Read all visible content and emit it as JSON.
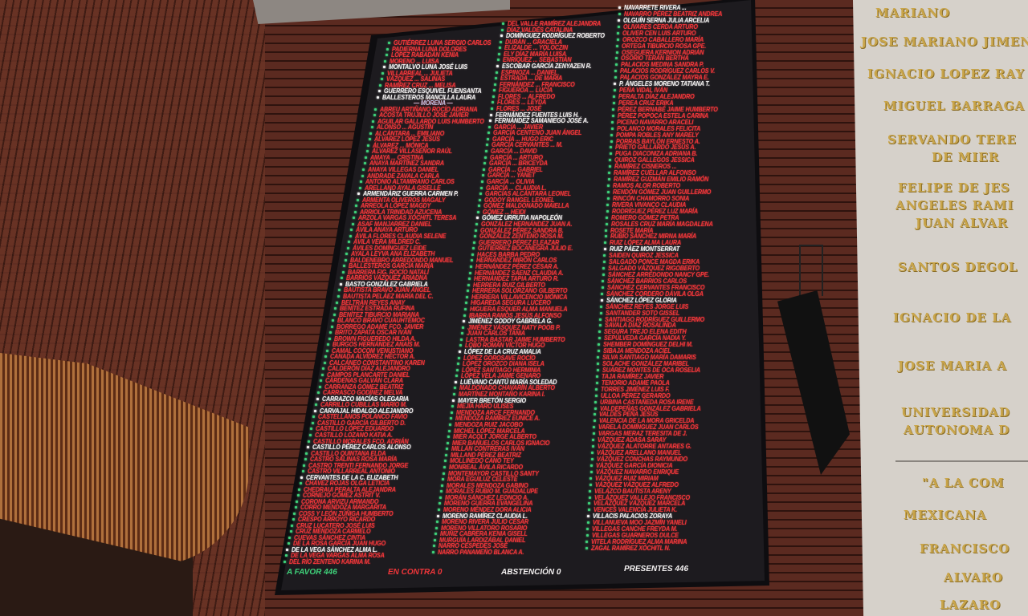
{
  "board": {
    "columns": [
      [
        {
          "n": "GUTIÉRREZ LUNA SERGIO CARLOS"
        },
        {
          "n": "PADIERNA LUNA DOLORES"
        },
        {
          "n": "LÓPEZ RABADÁN KENIA"
        },
        {
          "n": "MORENO ... LUISA"
        },
        {
          "n": "MONTALVO LUNA JOSÉ LUIS",
          "w": true
        },
        {
          "n": "VILLARREAL ... JULIETA"
        },
        {
          "n": "VÁZQUEZ ... SALINAS"
        },
        {
          "n": "RAMÍREZ CRUZ ... MELISA"
        },
        {
          "n": "GUERRERO ESQUIVEL FUENSANTA",
          "w": true
        },
        {
          "n": "BALLESTEROS MANCILLA LAURA",
          "w": true
        },
        {
          "n": "— MORENA —",
          "h": true
        },
        {
          "n": "ABREU ARTIÑANO ROCÍO ADRIANA"
        },
        {
          "n": "ACOSTA TRUJILLO JOSÉ JAVIER"
        },
        {
          "n": "AGUILAR GALLARDO LUIS HUMBERTO"
        },
        {
          "n": "ALONSO ... AGUSTÍN"
        },
        {
          "n": "ALCÁNTARA ... EMILIANO"
        },
        {
          "n": "ÁLVAREZ LÓPEZ JESÚS"
        },
        {
          "n": "ÁLVAREZ ... MÓNICA"
        },
        {
          "n": "ÁLVAREZ VILLASEÑOR RAÚL"
        },
        {
          "n": "AMAYA ... CRISTINA"
        },
        {
          "n": "ANAYA MARTÍNEZ SANDRA"
        },
        {
          "n": "ANAYA VILLEGAS DANIEL"
        },
        {
          "n": "ANDRADE ZAVALA CARLA"
        },
        {
          "n": "ANTONIO ALTAMIRANO CARLOS"
        },
        {
          "n": "ARELLANO AYALA GISELLE"
        },
        {
          "n": "ARMENDÁRIZ GUERRA CARMEN P.",
          "w": true
        },
        {
          "n": "ARMENTA OLIVEROS MAGALY"
        },
        {
          "n": "ARREOLA LÓPEZ MAGDY"
        },
        {
          "n": "ARRIOLA TRINIDAD AZUCENA"
        },
        {
          "n": "ARZOLA VARGAS XÓCHITL TERESA"
        },
        {
          "n": "ASAF MANJARREZ DANIEL"
        },
        {
          "n": "ÁVILA ANAYA ARTURO"
        },
        {
          "n": "ÁVILA FLORES CLAUDIA SELENE"
        },
        {
          "n": "ÁVILA VERA MILDRED C."
        },
        {
          "n": "ÁVILES DOMÍNGUEZ LEIDE"
        },
        {
          "n": "AYALA LEYVA ANA ELIZABETH"
        },
        {
          "n": "BALDENEBRO ARREDONDO MANUEL"
        },
        {
          "n": "BALLESTEROS GARCÍA MARÍA"
        },
        {
          "n": "BARRERA FIG. ROCÍO NATALÍ"
        },
        {
          "n": "BARRIOS VÁZQUEZ ARIADNA"
        },
        {
          "n": "BASTO GONZÁLEZ GABRIELA",
          "w": true
        },
        {
          "n": "BAUTISTA BRAVO JUAN ÁNGEL"
        },
        {
          "n": "BAUTISTA PELÁEZ MARÍA DEL C."
        },
        {
          "n": "BELTRÁN REYES ANAY"
        },
        {
          "n": "BENÍTEZ ESTRADA RUFINA"
        },
        {
          "n": "BENÍTEZ TIBURCIO MARIANA"
        },
        {
          "n": "BLANCO BRAVO CUAUHTÉMOC"
        },
        {
          "n": "BORREGO ADAME FCO. JAVIER"
        },
        {
          "n": "BRITO ZAPATA OSCAR IVÁN"
        },
        {
          "n": "BROWN FIGUEREDO HILDA A."
        },
        {
          "n": "BURGOS HERNÁNDEZ ANAÍS M."
        },
        {
          "n": "CAMAL COCOM VENUSTIANO"
        },
        {
          "n": "CANADA ALVÍDREZ HÉCTOR A."
        },
        {
          "n": "CALCÁNEO CONSTANTINO KAREN"
        },
        {
          "n": "CALDERÓN DÍAZ ALEJANDRO"
        },
        {
          "n": "CAMPOS PLANCARTE DANIEL"
        },
        {
          "n": "CÁRDENAS GALVÁN CLARA"
        },
        {
          "n": "CARRANZA GÓMEZ BEATRIZ"
        },
        {
          "n": "CARRASCO GODÍNEZ MELVA"
        },
        {
          "n": "CARRAZCO MACÍAS OLEGARIA",
          "w": true
        },
        {
          "n": "CARRILLO CUBILLAS MARIO M."
        },
        {
          "n": "CARVAJAL HIDALGO ALEJANDRO",
          "w": true
        },
        {
          "n": "CASTELLANOS POLANCO FAVIO"
        },
        {
          "n": "CASTILLO GARCÍA GILBERTO D."
        },
        {
          "n": "CASTILLO LÓPEZ EDUARDO"
        },
        {
          "n": "CASTILLO LOZANO KATIA A."
        },
        {
          "n": "CASTILLO MORALES FCO. ADRIÁN"
        },
        {
          "n": "CASTILLO PÉREZ CARLOS ALONSO",
          "w": true
        },
        {
          "n": "CASTILLO QUINTANA ELDA"
        },
        {
          "n": "CASTRO SALINAS ROSA MARÍA"
        },
        {
          "n": "CASTRO TRENTI FERNANDO JORGE"
        },
        {
          "n": "CASTRO VILLARREAL ANTONIO"
        },
        {
          "n": "CERVANTES DE LA C. ELIZABETH",
          "w": true
        },
        {
          "n": "CHÁVEZ ROJAS OLGA LETICIA"
        },
        {
          "n": "CHEDRAUI PERALTA ALEJANDRA"
        },
        {
          "n": "CORNEJO GÓMEZ ASTRIT V."
        },
        {
          "n": "CORONA ARVIZU ARMANDO"
        },
        {
          "n": "CORRO MENDOZA MARGARITA"
        },
        {
          "n": "COSS Y LEÓN ZÚÑIGA HUMBERTO"
        },
        {
          "n": "CRESPO ARROYO RICARDO"
        },
        {
          "n": "CRUZ LUCATERO JOSÉ LUIS"
        },
        {
          "n": "CRUZ MENDOZA CARMELO"
        },
        {
          "n": "CUEVAS SÁNCHEZ CINTIA"
        },
        {
          "n": "DE LA ROSA GARCÍA JUAN HUGO"
        },
        {
          "n": "DE LA VEGA SÁNCHEZ ALMA L.",
          "w": true
        },
        {
          "n": "DE LA VEGA VARGAS ALMA ROSA"
        },
        {
          "n": "DEL RÍO ZENTENO KARINA M."
        }
      ],
      [
        {
          "n": "DEL VALLE RAMÍREZ ALEJANDRA"
        },
        {
          "n": "DÍAZ VALDÉS CATALINA"
        },
        {
          "n": "DOMÍNGUEZ RODRÍGUEZ ROBERTO",
          "w": true
        },
        {
          "n": "DURÁN ... GRACIELA"
        },
        {
          "n": "ELIZALDE ... YOLOCZIN"
        },
        {
          "n": "ELY DÍAZ MARÍA LUISA"
        },
        {
          "n": "ENRÍQUEZ ... SEBASTIÁN"
        },
        {
          "n": "ESCOBAR GARCÍA ZENYAZEN R.",
          "w": true
        },
        {
          "n": "ESPINOZA ... DANIEL"
        },
        {
          "n": "ESTRADA ... DE MARÍA"
        },
        {
          "n": "FERNÁNDEZ ... FRANCISCO"
        },
        {
          "n": "FIGUEROA ... LUCÍA"
        },
        {
          "n": "FLORES ... ALFREDO"
        },
        {
          "n": "FLORES ... LEYDA"
        },
        {
          "n": "FLORES ... JOSÉ"
        },
        {
          "n": "FERNÁNDEZ FUENTES LUIS H.",
          "w": true
        },
        {
          "n": "FERNÁNDEZ SAMANIEGO JOSÉ A.",
          "w": true
        },
        {
          "n": "GARCÍA ... JAVIER"
        },
        {
          "n": "GARCÍA CENTENO JUAN ÁNGEL"
        },
        {
          "n": "GARCÍA ... HUGO ERIC"
        },
        {
          "n": "GARCÍA CERVANTES ... M."
        },
        {
          "n": "GARCÍA ... DAVID"
        },
        {
          "n": "GARCÍA ... ARTURO"
        },
        {
          "n": "GARCÍA ... BRICEYDA"
        },
        {
          "n": "GARCÍA ... GABRIEL"
        },
        {
          "n": "GARCÍA ... YANET"
        },
        {
          "n": "GARCÍA ... OLIVIA"
        },
        {
          "n": "GARCÍA ... CLAUDIA L."
        },
        {
          "n": "GARCÍAS ALCÁNTARA LEONEL"
        },
        {
          "n": "GODOY RANGEL LEONEL"
        },
        {
          "n": "GÓMEZ MALDONADO MAIELLA"
        },
        {
          "n": "GÓMEZ ... HEIDI"
        },
        {
          "n": "GÓMEZ URRUTIA NAPOLEÓN",
          "w": true
        },
        {
          "n": "GONZÁLEZ HERNÁNDEZ JUAN A."
        },
        {
          "n": "GONZÁLEZ PÉREZ SANDRA B."
        },
        {
          "n": "GONZÁLEZ ZENTENO ROSA M."
        },
        {
          "n": "GUERRERO PÉREZ ELEAZAR"
        },
        {
          "n": "GUTIÉRREZ BOCANEGRA JULIO E."
        },
        {
          "n": "HACES BARBA PEDRO"
        },
        {
          "n": "HERNÁNDEZ MIRÓN CARLOS"
        },
        {
          "n": "HERNÁNDEZ PÉREZ CÉSAR A."
        },
        {
          "n": "HERNÁNDEZ SÁENZ CLAUDIA A."
        },
        {
          "n": "HERNÁNDEZ TAPIA ARTURO R."
        },
        {
          "n": "HERRERA RUIZ GILBERTO"
        },
        {
          "n": "HERRERA SOLÓRZANO GILBERTO"
        },
        {
          "n": "HERRERA VILLAVICENCIO MÓNICA"
        },
        {
          "n": "HIGAREDA SEGURA LUCERO"
        },
        {
          "n": "HIGUERA ESQUER ALMA MANUELA"
        },
        {
          "n": "IBARRA RAMOS JESÚS ALFONSO"
        },
        {
          "n": "JIMÉNEZ GODOY GABRIELA G.",
          "w": true
        },
        {
          "n": "JIMÉNEZ VÁSQUEZ NATY POOB P."
        },
        {
          "n": "JUAN CARLOS TANIA"
        },
        {
          "n": "LASTRA BASTAR JAIME HUMBERTO"
        },
        {
          "n": "LOBO ROMÁN VÍCTOR HUGO"
        },
        {
          "n": "LÓPEZ DE LA CRUZ AMALIA",
          "w": true
        },
        {
          "n": "LÓPEZ GOROSAVE ROCÍO"
        },
        {
          "n": "LÓPEZ OROZCO DIANA ISELA"
        },
        {
          "n": "LÓPEZ SANTIAGO HERMINIA"
        },
        {
          "n": "LÓPEZ VELA JAIME GENARO"
        },
        {
          "n": "LUÉVANO CANTÚ MARÍA SOLEDAD",
          "w": true
        },
        {
          "n": "MALDONADO CHAVARÍN ALBERTO"
        },
        {
          "n": "MARTÍNEZ MONTAÑO KARINA I."
        },
        {
          "n": "MAYER BRETÓN SERGIO",
          "w": true
        },
        {
          "n": "MEJÍA HARO ULISES"
        },
        {
          "n": "MENDOZA ARCE FERNANDO"
        },
        {
          "n": "MENDOZA RAMÍREZ EUNICE A."
        },
        {
          "n": "MENDOZA RUIZ JACOBO"
        },
        {
          "n": "MICHEL LÓPEZ MARCELA"
        },
        {
          "n": "MIER ACOLT JORGE ALBERTO"
        },
        {
          "n": "MIER BAÑUELOS CARLOS IGNACIO"
        },
        {
          "n": "MILLÁN CONTRERAS IVÁN"
        },
        {
          "n": "MILLAND PÉREZ BEATRIZ"
        },
        {
          "n": "MOLLINEDO CANO TEY"
        },
        {
          "n": "MONREAL ÁVILA RICARDO"
        },
        {
          "n": "MONTEMAYOR CASTILLO SANTY"
        },
        {
          "n": "MORA EGUILUZ CELESTE"
        },
        {
          "n": "MORALES MENDOZA GABINO"
        },
        {
          "n": "MORALES RUBIO M. GUADALUPE"
        },
        {
          "n": "MORÁN SÁNCHEZ LEONCIO A."
        },
        {
          "n": "MORENO GUERRA EVANGELINA"
        },
        {
          "n": "MORENO MÉNDEZ DORA ALICIA"
        },
        {
          "n": "MORENO RAMÍREZ CLAUDIA L.",
          "w": true
        },
        {
          "n": "MORENO RIVERA JULIO CÉSAR"
        },
        {
          "n": "MORENO VILLATORO ROSARIO"
        },
        {
          "n": "MUÑIZ CABRERA KENIA GISELL"
        },
        {
          "n": "MURGUÍA LARDIZÁBAL DANIEL"
        },
        {
          "n": "NARRO CÉSPEDES JOSÉ"
        },
        {
          "n": "NARRO PANAMEÑO BLANCA A."
        }
      ],
      [
        {
          "n": "NAVARRETE RIVERA ...",
          "w": true
        },
        {
          "n": "NAVARRO PÉREZ BEATRIZ ANDREA"
        },
        {
          "n": "OLGUÍN SERNA JULIA ARCELIA",
          "w": true
        },
        {
          "n": "OLIVARES CERDA ARTURO"
        },
        {
          "n": "OLIVER CEN LUIS ARTURO"
        },
        {
          "n": "OROZCO CABALLERO MARÍA"
        },
        {
          "n": "ORTEGA TIBURCIO ROSA GPE."
        },
        {
          "n": "OSEGUERA KERNION ADRIÁN"
        },
        {
          "n": "OSORIO TERÁN BERTHA"
        },
        {
          "n": "PALACIOS MEDINA SANDRA P."
        },
        {
          "n": "PALACIOS RODRÍGUEZ CARLOS V."
        },
        {
          "n": "PALACIOS GONZÁLEZ MAYRA E."
        },
        {
          "n": "P. ÁNGELES MORENO TATIANA T.",
          "w": true
        },
        {
          "n": "PEÑA VIDAL IVÁN"
        },
        {
          "n": "PERALTA DÍAZ ALEJANDRO"
        },
        {
          "n": "PEREA CRUZ ERIKA"
        },
        {
          "n": "PÉREZ BERNABÉ JAIME HUMBERTO"
        },
        {
          "n": "PÉREZ POPOCA ESTELA CARINA"
        },
        {
          "n": "PICENO NAVARRO ARACELI"
        },
        {
          "n": "POLANCO MORALES FELICITA"
        },
        {
          "n": "POMPA ROBLES ANY MARELY"
        },
        {
          "n": "PORRAS BAYLÓN ERNESTO A."
        },
        {
          "n": "PRIETO GALLARDO JESÚS A."
        },
        {
          "n": "PUGA DIACONIZA ADRIANA B."
        },
        {
          "n": "QUIROZ GALLEGOS JESSICA"
        },
        {
          "n": "RAMÍREZ CISNEROS ..."
        },
        {
          "n": "RAMÍREZ CUÉLLAR ALFONSO"
        },
        {
          "n": "RAMÍREZ GUZMÁN EMILIO RAMÓN"
        },
        {
          "n": "RAMOS ALOR ROBERTO"
        },
        {
          "n": "RENDÓN GÓMEZ JUAN GUILLERMO"
        },
        {
          "n": "RINCÓN CHAMORRO SONIA"
        },
        {
          "n": "RIVERA VIVANCO CLAUDIA"
        },
        {
          "n": "RODRÍGUEZ PÉREZ LUZ MARÍA"
        },
        {
          "n": "ROMERO GÓMEZ PETRA"
        },
        {
          "n": "ROSALES CRUZ MARÍA MAGDALENA"
        },
        {
          "n": "ROSETE MARÍA"
        },
        {
          "n": "RUBIO SÁNCHEZ MIRNA MARÍA"
        },
        {
          "n": "RUIZ LÓPEZ ALMA LAURA"
        },
        {
          "n": "RUIZ PÁEZ MONTSERRAT",
          "w": true
        },
        {
          "n": "SAIDEN QUIROZ JESSICA"
        },
        {
          "n": "SALGADO PONCE MAGDA ERIKA"
        },
        {
          "n": "SALGADO VÁZQUEZ RIGOBERTO"
        },
        {
          "n": "SÁNCHEZ ARREDONDO NANCY GPE."
        },
        {
          "n": "SÁNCHEZ BARRIOS CARLOS"
        },
        {
          "n": "SÁNCHEZ CERVANTES FRANCISCO"
        },
        {
          "n": "SÁNCHEZ CORDERO DÁVILA OLGA"
        },
        {
          "n": "SÁNCHEZ LÓPEZ GLORIA",
          "w": true
        },
        {
          "n": "SÁNCHEZ REYES JORGE LUIS"
        },
        {
          "n": "SANTANDER SOTO GISSEL"
        },
        {
          "n": "SANTIAGO RODRÍGUEZ GUILLERMO"
        },
        {
          "n": "SAVALA DÍAZ ROSALINDA"
        },
        {
          "n": "SEGURA TREJO ELENA EDITH"
        },
        {
          "n": "SEPÚLVEDA GARCÍA NADIA Y."
        },
        {
          "n": "SHEMBER DOMÍNGUEZ DELHI M."
        },
        {
          "n": "SIBAJA MENDOZA ACIEL"
        },
        {
          "n": "SILVA SANTIAGO MARÍA DAMARIS"
        },
        {
          "n": "SOLACHE GONZÁLEZ MARIBEL"
        },
        {
          "n": "SUÁREZ MONTES DE OCA ROSELIA"
        },
        {
          "n": "TAJA RAMÍREZ JAVIER"
        },
        {
          "n": "TENORIO ADAME PAOLA"
        },
        {
          "n": "TORRES JIMÉNEZ LUIS F."
        },
        {
          "n": "ULLOA PÉREZ GERARDO"
        },
        {
          "n": "URBINA CASTAÑEDA ROSA IRENE"
        },
        {
          "n": "VALDEPEÑAS GONZÁLEZ GABRIELA"
        },
        {
          "n": "VALDÉS PEÑA JESÚS"
        },
        {
          "n": "VALENCIA DE LA MORA GRICELDA"
        },
        {
          "n": "VARELA DOMÍNGUEZ JUAN CARLOS"
        },
        {
          "n": "VARGAS MERAZ TERESITA DE J."
        },
        {
          "n": "VÁZQUEZ ADASA SARAY"
        },
        {
          "n": "VÁZQUEZ ALATORRE ANTARES G."
        },
        {
          "n": "VÁZQUEZ ARELLANO MANUEL"
        },
        {
          "n": "VÁZQUEZ CONCHAS RAYMUNDO"
        },
        {
          "n": "VÁZQUEZ GARCÍA DIONICIA"
        },
        {
          "n": "VÁZQUEZ NAVARRO ENRIQUE"
        },
        {
          "n": "VÁZQUEZ RUIZ MIRIAM"
        },
        {
          "n": "VÁZQUEZ VÁZQUEZ ALFREDO"
        },
        {
          "n": "VELAZCO BAUTISTA ARENY"
        },
        {
          "n": "VELÁZQUEZ VALLEJO FRANCISCO"
        },
        {
          "n": "VELÁZQUEZ VÁZQUEZ MARCELA"
        },
        {
          "n": "VENCES VALENCIA JULIETA K."
        },
        {
          "n": "VILLACIS PALACIOS ZORAYA",
          "w": true
        },
        {
          "n": "VILLANUEVA MOO JAZMÍN YANELI"
        },
        {
          "n": "VILLEGAS CANCHE FREYDA M."
        },
        {
          "n": "VILLEGAS GUARNEROS DULCE"
        },
        {
          "n": "VITELA RODRÍGUEZ ALMA MARINA"
        },
        {
          "n": "ZAGAL RAMÍREZ XÓCHITL N."
        }
      ]
    ],
    "totals": {
      "favor": "A FAVOR 446",
      "contra": "EN CONTRA 0",
      "abstencion": "ABSTENCIÓN 0",
      "presentes": "PRESENTES 446"
    },
    "colors": {
      "favor": "#3fd27a",
      "contra": "#f0363a",
      "text_highlight": "#f4f1f1",
      "background": "#1d1b1f"
    }
  },
  "wall_inscriptions": [
    "MARIANO",
    "JOSE MARIANO JIMEN",
    "IGNACIO LOPEZ RAY",
    "MIGUEL BARRAGA",
    "SERVANDO TERE",
    "DE MIER",
    "FELIPE DE JES",
    "ANGELES RAMI",
    "JUAN ALVAR",
    "SANTOS DEGOL",
    "IGNACIO DE LA",
    "JOSE MARIA A",
    "UNIVERSIDAD",
    "AUTONOMA D",
    "\"A LA COM",
    "MEXICANA",
    "FRANCISCO",
    "ALVARO",
    "LAZARO"
  ]
}
